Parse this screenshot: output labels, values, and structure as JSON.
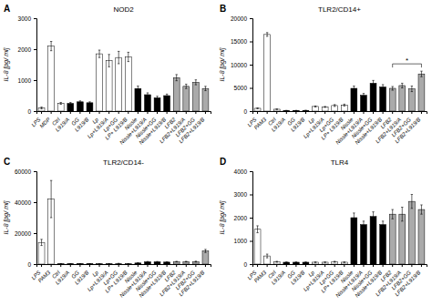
{
  "chart_data": [
    {
      "type": "bar",
      "panel_label": "A",
      "title": "NOD2",
      "ylabel": "IL-8 [pg/ ml]",
      "categories": [
        "LPS",
        "MDP",
        "Ctrl",
        "L919/A",
        "GG",
        "L919/B",
        "Lp",
        "Lp+L919/A",
        "Lp+GG",
        "LP+ L919/B",
        "Nissle",
        "Nissle+L919/A",
        "Nissle+GG",
        "Nissle+L919/B",
        "LFB2",
        "LFB2+L919/A",
        "LFB2+GG",
        "LFB2+L919/B"
      ],
      "colors": [
        "white",
        "white",
        "white",
        "black",
        "black",
        "black",
        "white",
        "white",
        "white",
        "white",
        "black",
        "black",
        "black",
        "black",
        "#aaaaaa",
        "#aaaaaa",
        "#aaaaaa",
        "#aaaaaa"
      ],
      "values": [
        100,
        2100,
        250,
        250,
        300,
        270,
        1850,
        1630,
        1730,
        1750,
        730,
        530,
        430,
        500,
        1080,
        800,
        930,
        730
      ],
      "errors": [
        30,
        150,
        30,
        30,
        30,
        30,
        120,
        200,
        200,
        150,
        80,
        60,
        50,
        50,
        100,
        70,
        80,
        70
      ],
      "ylim": [
        0,
        3000
      ],
      "yticks": [
        0,
        1000,
        2000,
        3000
      ]
    },
    {
      "type": "bar",
      "panel_label": "B",
      "title": "TLR2/CD14+",
      "ylabel": "IL-8 [pg/ ml]",
      "categories": [
        "LPS",
        "PAM3",
        "Ctrl",
        "L919/A",
        "GG",
        "L919/B",
        "Lp",
        "Lp+L919/A",
        "Lp+GG",
        "LP+ L919/B",
        "Nissle",
        "Nissle+L919/A",
        "Nissle+GG",
        "Nissle+L919/B",
        "LFB2",
        "LFB2+L919/A",
        "LFB2+GG",
        "LFB2+L919/B"
      ],
      "colors": [
        "white",
        "white",
        "white",
        "black",
        "black",
        "black",
        "white",
        "white",
        "white",
        "white",
        "black",
        "black",
        "black",
        "black",
        "#aaaaaa",
        "#aaaaaa",
        "#aaaaaa",
        "#aaaaaa"
      ],
      "values": [
        600,
        16500,
        400,
        130,
        130,
        150,
        1000,
        900,
        1200,
        1300,
        4900,
        3400,
        6000,
        5200,
        4900,
        5500,
        4800,
        8000
      ],
      "errors": [
        80,
        400,
        50,
        20,
        20,
        20,
        100,
        100,
        200,
        200,
        500,
        400,
        600,
        500,
        400,
        500,
        600,
        600
      ],
      "ylim": [
        0,
        20000
      ],
      "yticks": [
        0,
        5000,
        10000,
        15000,
        20000
      ],
      "annotations": [
        {
          "text": "*",
          "from": "LFB2",
          "to": "LFB2+L919/B"
        }
      ]
    },
    {
      "type": "bar",
      "panel_label": "C",
      "title": "TLR2/CD14-",
      "ylabel": "IL-8 [pg/ ml]",
      "categories": [
        "LPS",
        "PAM3",
        "Ctrl",
        "L919/A",
        "GG",
        "L919/B",
        "Lp",
        "Lp+L919/A",
        "Lp+GG",
        "LP+ L919/B",
        "Nissle",
        "Nissle+L919/A",
        "Nissle+GG",
        "Nissle+L919/B",
        "LFB2",
        "LFB2+L919/A",
        "LFB2+GG",
        "LFB2+L919/B"
      ],
      "colors": [
        "white",
        "white",
        "white",
        "black",
        "black",
        "black",
        "white",
        "white",
        "white",
        "white",
        "black",
        "black",
        "black",
        "black",
        "#aaaaaa",
        "#aaaaaa",
        "#aaaaaa",
        "#aaaaaa"
      ],
      "values": [
        14000,
        42000,
        300,
        200,
        250,
        230,
        200,
        300,
        400,
        300,
        700,
        1500,
        1500,
        1300,
        1600,
        1600,
        1600,
        8500
      ],
      "errors": [
        2000,
        12000,
        50,
        30,
        30,
        30,
        30,
        50,
        60,
        50,
        100,
        200,
        200,
        200,
        200,
        200,
        300,
        1000
      ],
      "ylim": [
        0,
        60000
      ],
      "yticks": [
        0,
        20000,
        40000,
        60000
      ]
    },
    {
      "type": "bar",
      "panel_label": "D",
      "title": "TLR4",
      "ylabel": "IL-8 [pg/ ml]",
      "categories": [
        "LPS",
        "PAM3",
        "Ctrl",
        "L919/A",
        "GG",
        "L919/B",
        "Lp",
        "Lp+L919/A",
        "Lp+GG",
        "LP+ L919/B",
        "Nissle",
        "Nissle+L919/A",
        "Nissle+GG",
        "Nissle+L919/B",
        "LFB2",
        "LFB2+L919/A",
        "LFB2+GG",
        "LFB2+L919/B"
      ],
      "colors": [
        "white",
        "white",
        "white",
        "black",
        "black",
        "black",
        "white",
        "white",
        "white",
        "white",
        "black",
        "black",
        "black",
        "black",
        "#aaaaaa",
        "#aaaaaa",
        "#aaaaaa",
        "#aaaaaa"
      ],
      "values": [
        1500,
        350,
        100,
        80,
        80,
        80,
        80,
        80,
        100,
        80,
        2000,
        1700,
        2050,
        1700,
        2150,
        2150,
        2700,
        2350
      ],
      "errors": [
        150,
        80,
        20,
        10,
        10,
        10,
        10,
        10,
        20,
        10,
        200,
        150,
        200,
        150,
        200,
        300,
        300,
        200
      ],
      "ylim": [
        0,
        4000
      ],
      "yticks": [
        0,
        1000,
        2000,
        3000,
        4000
      ]
    }
  ]
}
